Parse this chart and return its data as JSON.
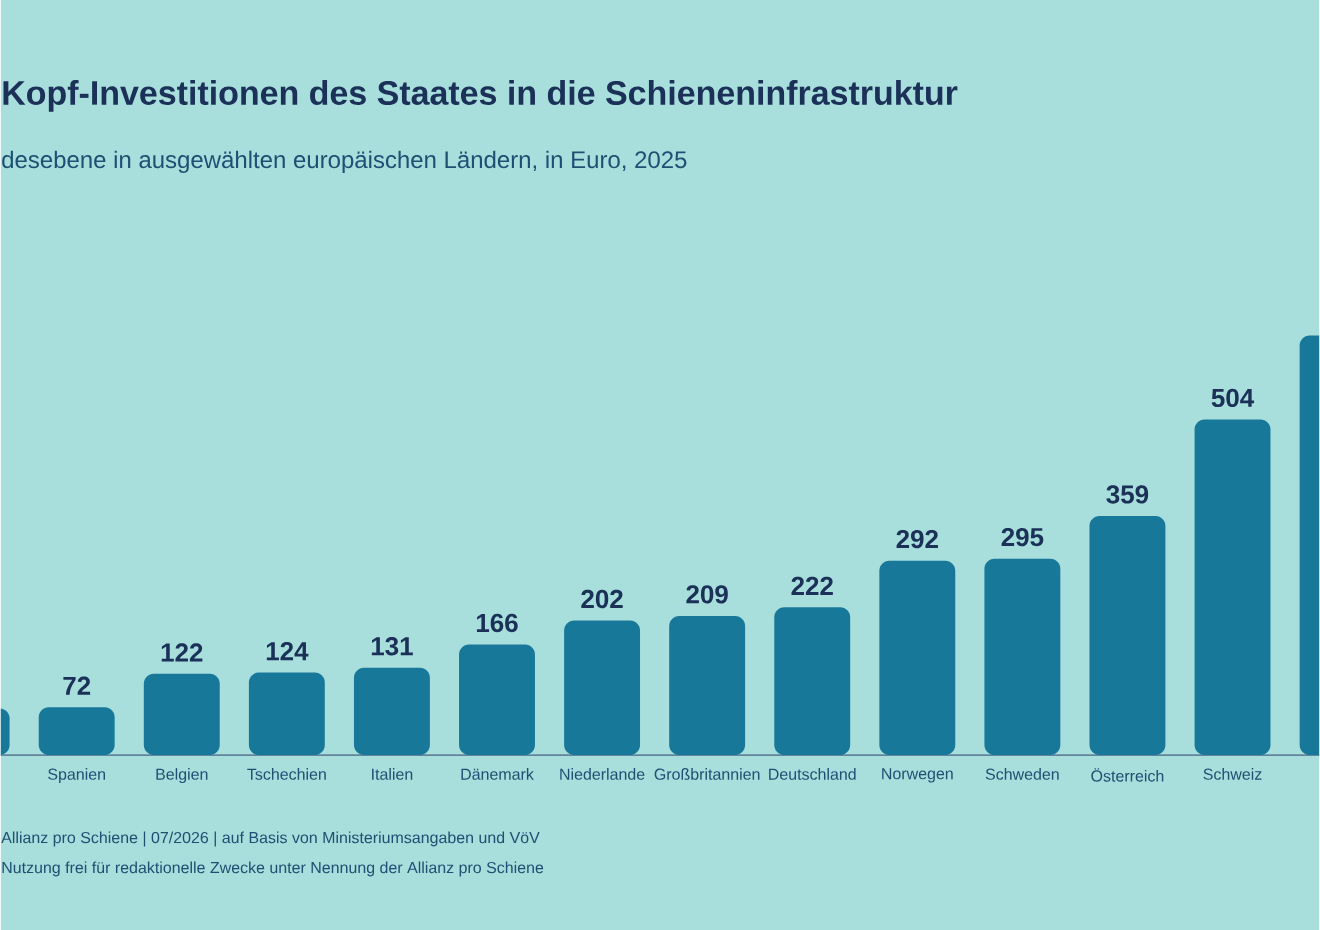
{
  "chart_data": {
    "type": "bar",
    "title": "Kopf-Investitionen des Staates in die Schieneninfrastruktur",
    "subtitle": "desebene in ausgewählten europäischen Ländern, in Euro, 2025",
    "categories": [
      null,
      "Spanien",
      "Belgien",
      "Tschechien",
      "Italien",
      "Dänemark",
      "Niederlande",
      "Großbritannien",
      "Deutschland",
      "Norwegen",
      "Schweden",
      "Österreich",
      "Schweiz",
      null
    ],
    "values": [
      70,
      72,
      122,
      124,
      131,
      166,
      202,
      209,
      222,
      292,
      295,
      359,
      504,
      630
    ],
    "value_labels": [
      null,
      "72",
      "122",
      "124",
      "131",
      "166",
      "202",
      "209",
      "222",
      "292",
      "295",
      "359",
      "504",
      null
    ],
    "color": "#17789a",
    "annotations": [
      "Allianz pro Schiene | 07/2026 | auf Basis von Ministeriumsangaben und VöV",
      "Nutzung frei für redaktionelle Zwecke unter Nennung der Allianz pro Schiene"
    ]
  }
}
